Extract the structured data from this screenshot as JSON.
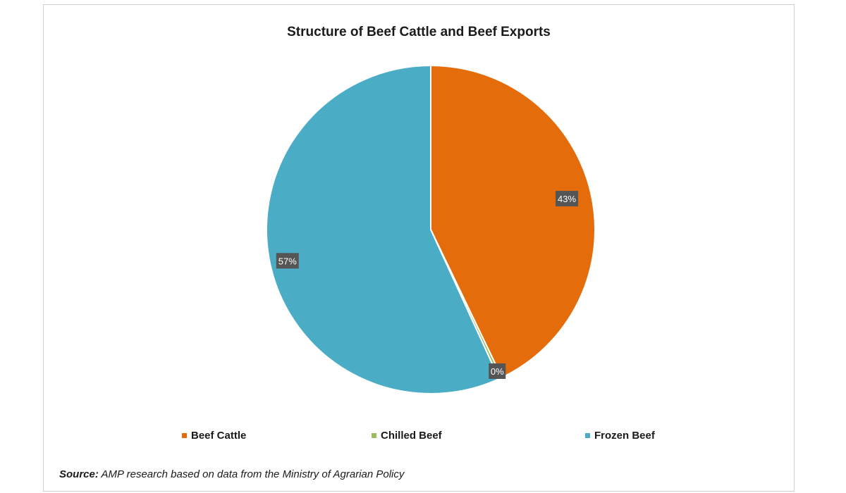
{
  "chart_data": {
    "type": "pie",
    "title": "Structure of Beef Cattle and Beef Exports",
    "categories": [
      "Beef Cattle",
      "Chilled Beef",
      "Frozen Beef"
    ],
    "values": [
      43,
      0.3,
      57
    ],
    "data_labels": [
      "43%",
      "0%",
      "57%"
    ],
    "colors": [
      "#E46C0A",
      "#9BBB59",
      "#4BACC6"
    ],
    "legend_position": "bottom"
  },
  "source": {
    "label": "Source:",
    "text": "AMP research based on data from the Ministry of Agrarian Policy"
  }
}
